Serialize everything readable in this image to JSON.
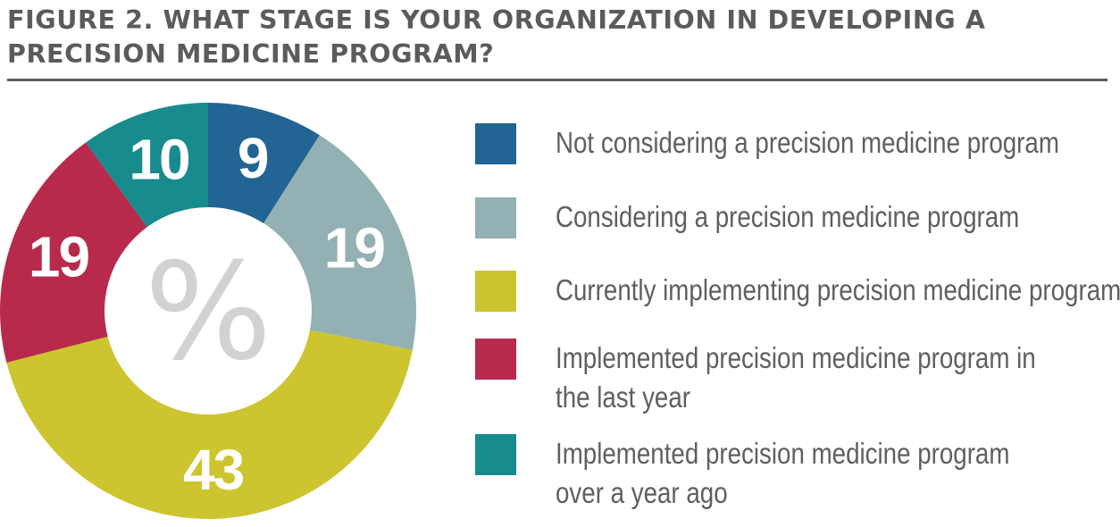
{
  "title": "FIGURE 2. WHAT STAGE IS YOUR ORGANIZATION IN DEVELOPING A PRECISION MEDICINE PROGRAM?",
  "chart_data": {
    "type": "pie",
    "variant": "donut",
    "title": "FIGURE 2. WHAT STAGE IS YOUR ORGANIZATION IN DEVELOPING A PRECISION MEDICINE PROGRAM?",
    "center_label": "%",
    "unit": "%",
    "legend_position": "right",
    "slices": [
      {
        "label": "Not considering a precision medicine program",
        "value": 9,
        "value_label": "9",
        "color": "#226493"
      },
      {
        "label": "Considering a precision medicine program",
        "value": 19,
        "value_label": "19",
        "color": "#93b0b2"
      },
      {
        "label": "Currently implementing precision medicine program",
        "value": 43,
        "value_label": "43",
        "color": "#ccc52f"
      },
      {
        "label": "Implemented precision medicine program in the last year",
        "value": 19,
        "value_label": "19",
        "color": "#b72a4c"
      },
      {
        "label": "Implemented precision medicine program over a year ago",
        "value": 10,
        "value_label": "10",
        "color": "#178b8e"
      }
    ]
  },
  "legend": [
    {
      "lines": [
        "Not considering a precision medicine program"
      ],
      "color": "#226493"
    },
    {
      "lines": [
        "Considering a precision medicine program"
      ],
      "color": "#93b0b2"
    },
    {
      "lines": [
        "Currently implementing precision medicine program"
      ],
      "color": "#ccc52f"
    },
    {
      "lines": [
        "Implemented precision medicine program in",
        "the last year"
      ],
      "color": "#b72a4c"
    },
    {
      "lines": [
        "Implemented precision medicine program",
        "over a year ago"
      ],
      "color": "#178b8e"
    }
  ]
}
